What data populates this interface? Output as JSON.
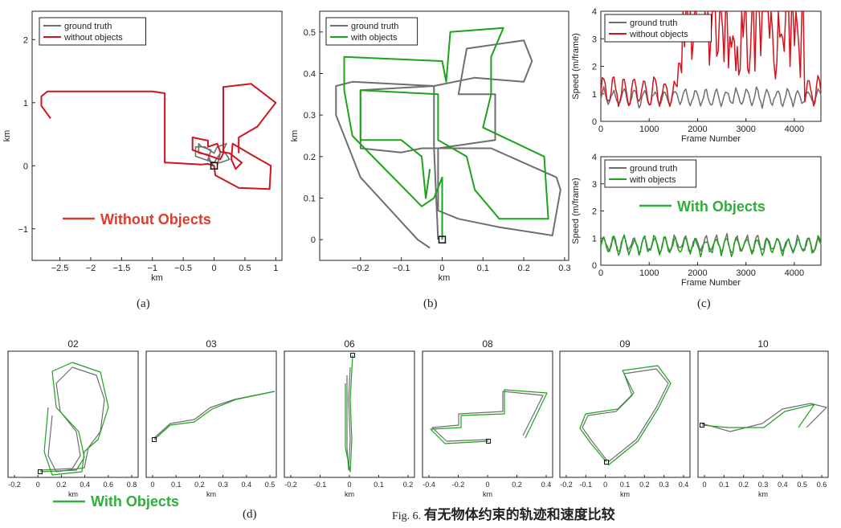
{
  "panel_labels": [
    "(a)",
    "(b)",
    "(c)",
    "(d)"
  ],
  "figure_caption": {
    "prefix": "Fig. 6.",
    "title": "有无物体约束的轨迹和速度比较"
  },
  "colors": {
    "ground_truth": "#6e6e6e",
    "without": "#d0141e",
    "with": "#1ba31b",
    "overlay_red": "#e03c2e",
    "overlay_green": "#2fae3a"
  },
  "chart_data": [
    {
      "id": "a",
      "type": "line",
      "xlabel": "km",
      "ylabel": "km",
      "xlim": [
        -2.95,
        1.1
      ],
      "ylim": [
        -1.5,
        2.45
      ],
      "xticks": [
        -2.5,
        -2,
        -1.5,
        -1,
        -0.5,
        0,
        0.5,
        1
      ],
      "xticklabels": [
        "−2.5",
        "−2",
        "−1.5",
        "−1",
        "−0.5",
        "0",
        "0.5",
        "1"
      ],
      "yticks": [
        -1,
        0,
        1,
        2
      ],
      "yticklabels": [
        "−1",
        "0",
        "1",
        "2"
      ],
      "legend": {
        "position": "top-left",
        "entries": [
          "ground truth",
          "without objects"
        ]
      },
      "overlay_label": "Without Objects",
      "start_marker": [
        0,
        0
      ],
      "series": [
        {
          "name": "ground truth",
          "color": "#6e6e6e",
          "points": [
            [
              0,
              0
            ],
            [
              -0.1,
              0.1
            ],
            [
              -0.05,
              0.25
            ],
            [
              -0.2,
              0.3
            ],
            [
              -0.25,
              0.35
            ],
            [
              -0.25,
              0.2
            ],
            [
              -0.1,
              0.18
            ],
            [
              -0.05,
              0.05
            ],
            [
              0.1,
              0.05
            ],
            [
              0.25,
              0.1
            ],
            [
              0.15,
              0.25
            ],
            [
              0.2,
              0.35
            ],
            [
              0.05,
              0.3
            ],
            [
              0,
              0.2
            ],
            [
              -0.15,
              0.3
            ],
            [
              -0.3,
              0.3
            ],
            [
              -0.3,
              0.15
            ],
            [
              0,
              0.05
            ],
            [
              0.1,
              0.2
            ],
            [
              0.05,
              0
            ]
          ]
        },
        {
          "name": "without objects",
          "color": "#d0141e",
          "points": [
            [
              -2.65,
              0.75
            ],
            [
              -2.8,
              0.95
            ],
            [
              -2.8,
              1.1
            ],
            [
              -2.7,
              1.18
            ],
            [
              -1.0,
              1.18
            ],
            [
              -0.8,
              1.15
            ],
            [
              -0.8,
              0.05
            ],
            [
              -0.75,
              0.05
            ],
            [
              -0.2,
              0.02
            ],
            [
              -0.1,
              0.03
            ],
            [
              0,
              0
            ],
            [
              0.02,
              -0.15
            ],
            [
              0.4,
              -0.35
            ],
            [
              0.9,
              -0.37
            ],
            [
              0.92,
              0.0
            ],
            [
              0.65,
              0.15
            ],
            [
              0.3,
              0.35
            ],
            [
              0.28,
              0.1
            ],
            [
              0.35,
              -0.05
            ],
            [
              0.45,
              0.05
            ],
            [
              0.25,
              0.2
            ],
            [
              0.1,
              0.22
            ],
            [
              0.05,
              0.35
            ],
            [
              -0.1,
              0.3
            ],
            [
              -0.1,
              0.4
            ],
            [
              -0.35,
              0.45
            ],
            [
              -0.35,
              0.25
            ],
            [
              0.1,
              0.1
            ],
            [
              0.15,
              0.2
            ],
            [
              0.15,
              1.25
            ],
            [
              0.6,
              1.3
            ],
            [
              1.0,
              1.0
            ],
            [
              0.7,
              0.62
            ],
            [
              0.4,
              0.45
            ],
            [
              0.4,
              0.2
            ]
          ]
        }
      ]
    },
    {
      "id": "b",
      "type": "line",
      "xlabel": "km",
      "ylabel": "km",
      "xlim": [
        -0.3,
        0.31
      ],
      "ylim": [
        -0.05,
        0.55
      ],
      "xticks": [
        -0.2,
        -0.1,
        0,
        0.1,
        0.2,
        0.3
      ],
      "xticklabels": [
        "−0.2",
        "−0.1",
        "0",
        "0.1",
        "0.2",
        "0.3"
      ],
      "yticks": [
        0,
        0.1,
        0.2,
        0.3,
        0.4,
        0.5
      ],
      "yticklabels": [
        "0",
        "0.1",
        "0.2",
        "0.3",
        "0.4",
        "0.5"
      ],
      "legend": {
        "position": "top-left",
        "entries": [
          "ground truth",
          "with objects"
        ]
      },
      "start_marker": [
        0,
        0
      ],
      "series": [
        {
          "name": "ground truth",
          "color": "#6e6e6e",
          "points": [
            [
              -0.03,
              -0.02
            ],
            [
              -0.06,
              0.0
            ],
            [
              -0.2,
              0.15
            ],
            [
              -0.26,
              0.3
            ],
            [
              -0.26,
              0.37
            ],
            [
              -0.22,
              0.38
            ],
            [
              -0.02,
              0.37
            ],
            [
              -0.02,
              0.22
            ],
            [
              0.12,
              0.22
            ],
            [
              0.28,
              0.15
            ],
            [
              0.29,
              0.12
            ],
            [
              0.27,
              0.01
            ],
            [
              0.14,
              0.03
            ],
            [
              0.04,
              0.05
            ],
            [
              -0.01,
              0.07
            ],
            [
              -0.01,
              0.22
            ],
            [
              0.13,
              0.24
            ],
            [
              0.13,
              0.35
            ],
            [
              0.1,
              0.35
            ],
            [
              0.04,
              0.35
            ],
            [
              0.06,
              0.46
            ],
            [
              0.2,
              0.48
            ],
            [
              0.22,
              0.43
            ],
            [
              0.2,
              0.38
            ],
            [
              0.08,
              0.39
            ],
            [
              -0.02,
              0.37
            ],
            [
              -0.2,
              0.36
            ],
            [
              -0.2,
              0.22
            ],
            [
              -0.1,
              0.21
            ],
            [
              -0.05,
              0.22
            ],
            [
              -0.02,
              0.22
            ],
            [
              -0.01,
              0.0
            ]
          ]
        },
        {
          "name": "with objects",
          "color": "#1ba31b",
          "points": [
            [
              0,
              0
            ],
            [
              0,
              0.15
            ],
            [
              -0.02,
              0.1
            ],
            [
              -0.05,
              0.08
            ],
            [
              -0.22,
              0.25
            ],
            [
              -0.24,
              0.36
            ],
            [
              -0.24,
              0.44
            ],
            [
              0.0,
              0.43
            ],
            [
              0.01,
              0.38
            ],
            [
              0.02,
              0.5
            ],
            [
              0.15,
              0.51
            ],
            [
              0.12,
              0.44
            ],
            [
              0.12,
              0.35
            ],
            [
              0.1,
              0.27
            ],
            [
              0.25,
              0.2
            ],
            [
              0.26,
              0.05
            ],
            [
              0.14,
              0.05
            ],
            [
              0.08,
              0.12
            ],
            [
              0.06,
              0.2
            ],
            [
              -0.01,
              0.24
            ],
            [
              -0.01,
              0.35
            ],
            [
              -0.2,
              0.36
            ],
            [
              -0.2,
              0.24
            ],
            [
              -0.1,
              0.24
            ],
            [
              -0.05,
              0.2
            ],
            [
              -0.04,
              0.1
            ],
            [
              -0.03,
              0.17
            ]
          ]
        }
      ]
    },
    {
      "id": "c-top",
      "type": "line",
      "xlabel": "Frame Number",
      "ylabel": "Speed (m/frame)",
      "xlim": [
        0,
        4550
      ],
      "ylim": [
        0,
        4
      ],
      "xticks": [
        0,
        1000,
        2000,
        3000,
        4000
      ],
      "yticks": [
        0,
        1,
        2,
        3,
        4
      ],
      "legend": {
        "position": "top-left",
        "entries": [
          "ground truth",
          "without objects"
        ]
      },
      "series": [
        {
          "name": "ground truth",
          "color": "#6e6e6e",
          "mean": 0.95,
          "amplitude": 0.3
        },
        {
          "name": "without objects",
          "color": "#d0141e",
          "mean": 1.2,
          "amplitude": 0.5,
          "spikes_after_frame": 1600,
          "max_spike": 4
        }
      ]
    },
    {
      "id": "c-bottom",
      "type": "line",
      "xlabel": "Frame Number",
      "ylabel": "Speed (m/frame)",
      "xlim": [
        0,
        4550
      ],
      "ylim": [
        0,
        4
      ],
      "xticks": [
        0,
        1000,
        2000,
        3000,
        4000
      ],
      "yticks": [
        0,
        1,
        2,
        3,
        4
      ],
      "legend": {
        "position": "top-left",
        "entries": [
          "ground truth",
          "with objects"
        ]
      },
      "overlay_label": "With Objects",
      "series": [
        {
          "name": "ground truth",
          "color": "#6e6e6e",
          "mean": 0.85,
          "amplitude": 0.3
        },
        {
          "name": "with objects",
          "color": "#1ba31b",
          "mean": 0.8,
          "amplitude": 0.3
        }
      ]
    },
    {
      "id": "d-02",
      "type": "line",
      "title": "02",
      "xlabel": "km",
      "xticks": [
        -0.2,
        0,
        0.2,
        0.4,
        0.6,
        0.8
      ],
      "xticklabels": [
        "-0.2",
        "0",
        "0.2",
        "0.4",
        "0.6",
        "0.8"
      ],
      "overlay_label": "With Objects"
    },
    {
      "id": "d-03",
      "type": "line",
      "title": "03",
      "xlabel": "km",
      "xticks": [
        0,
        0.1,
        0.2,
        0.3,
        0.4,
        0.5
      ],
      "xticklabels": [
        "0",
        "0.1",
        "0.2",
        "0.3",
        "0.4",
        "0.5"
      ]
    },
    {
      "id": "d-06",
      "type": "line",
      "title": "06",
      "xlabel": "km",
      "xticks": [
        -0.2,
        -0.1,
        0,
        0.1,
        0.2
      ],
      "xticklabels": [
        "-0.2",
        "-0.1",
        "0",
        "0.1",
        "0.2"
      ]
    },
    {
      "id": "d-08",
      "type": "line",
      "title": "08",
      "xlabel": "km",
      "xticks": [
        -0.4,
        -0.2,
        0,
        0.2,
        0.4
      ],
      "xticklabels": [
        "-0.4",
        "-0.2",
        "0",
        "0.2",
        "0.4"
      ]
    },
    {
      "id": "d-09",
      "type": "line",
      "title": "09",
      "xlabel": "km",
      "xticks": [
        -0.2,
        -0.1,
        0,
        0.1,
        0.2,
        0.3,
        0.4
      ],
      "xticklabels": [
        "-0.2",
        "-0.1",
        "0",
        "0.1",
        "0.2",
        "0.3",
        "0.4"
      ]
    },
    {
      "id": "d-10",
      "type": "line",
      "title": "10",
      "xlabel": "km",
      "xticks": [
        0,
        0.1,
        0.2,
        0.3,
        0.4,
        0.5,
        0.6
      ],
      "xticklabels": [
        "0",
        "0.1",
        "0.2",
        "0.3",
        "0.4",
        "0.5",
        "0.6"
      ]
    }
  ]
}
